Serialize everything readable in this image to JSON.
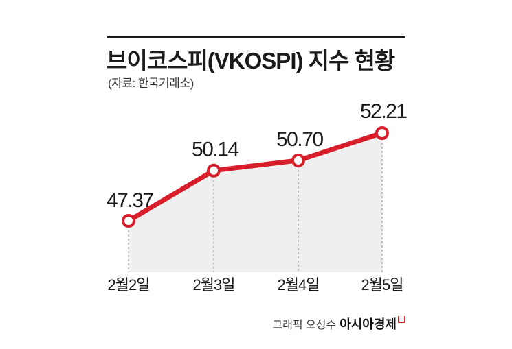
{
  "header": {
    "title": "브이코스피(VKOSPI) 지수 현황",
    "source": "(자료: 한국거래소)"
  },
  "footer": {
    "credit": "그래픽 오성수",
    "brand": "아시아경제"
  },
  "colors": {
    "line": "#d81e2a",
    "area": "#efefef",
    "guide": "#888888"
  },
  "chart_data": {
    "type": "line",
    "title": "브이코스피(VKOSPI) 지수 현황",
    "subtitle": "(자료: 한국거래소)",
    "categories": [
      "2월2일",
      "2월3일",
      "2월4일",
      "2월5일"
    ],
    "values": [
      47.37,
      50.14,
      50.7,
      52.21
    ],
    "labels": [
      "47.37",
      "50.14",
      "50.70",
      "52.21"
    ],
    "xlabel": "",
    "ylabel": "",
    "grid": false,
    "area_fill": true
  }
}
